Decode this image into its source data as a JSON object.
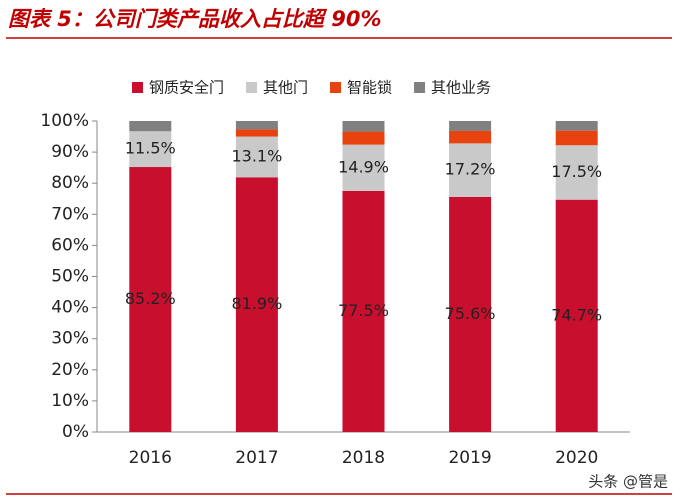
{
  "chart_data": {
    "type": "stacked_bar",
    "title": "图表 5：公司门类产品收入占比超 90%",
    "categories": [
      "2016",
      "2017",
      "2018",
      "2019",
      "2020"
    ],
    "series": [
      {
        "name": "钢质安全门",
        "color": "#c8102e",
        "values": [
          85.2,
          81.9,
          77.5,
          75.6,
          74.7
        ],
        "value_labels": [
          "85.2%",
          "81.9%",
          "77.5%",
          "75.6%",
          "74.7%"
        ]
      },
      {
        "name": "其他门",
        "color": "#c9c9c9",
        "values": [
          11.5,
          13.1,
          14.9,
          17.2,
          17.5
        ],
        "value_labels": [
          "11.5%",
          "13.1%",
          "14.9%",
          "17.2%",
          "17.5%"
        ]
      },
      {
        "name": "智能锁",
        "color": "#e8430f",
        "values": [
          0,
          2.3,
          4.2,
          4.0,
          4.7
        ]
      },
      {
        "name": "其他业务",
        "color": "#808080",
        "values": [
          3.3,
          2.7,
          3.4,
          3.2,
          3.1
        ]
      }
    ],
    "ylim": [
      0,
      100
    ],
    "yticks": [
      {
        "value": 0,
        "label": "0%"
      },
      {
        "value": 10,
        "label": "10%"
      },
      {
        "value": 20,
        "label": "20%"
      },
      {
        "value": 30,
        "label": "30%"
      },
      {
        "value": 40,
        "label": "40%"
      },
      {
        "value": 50,
        "label": "50%"
      },
      {
        "value": 60,
        "label": "60%"
      },
      {
        "value": 70,
        "label": "70%"
      },
      {
        "value": 80,
        "label": "80%"
      },
      {
        "value": 90,
        "label": "90%"
      },
      {
        "value": 100,
        "label": "100%"
      }
    ],
    "watermark": "头条 @管是"
  }
}
